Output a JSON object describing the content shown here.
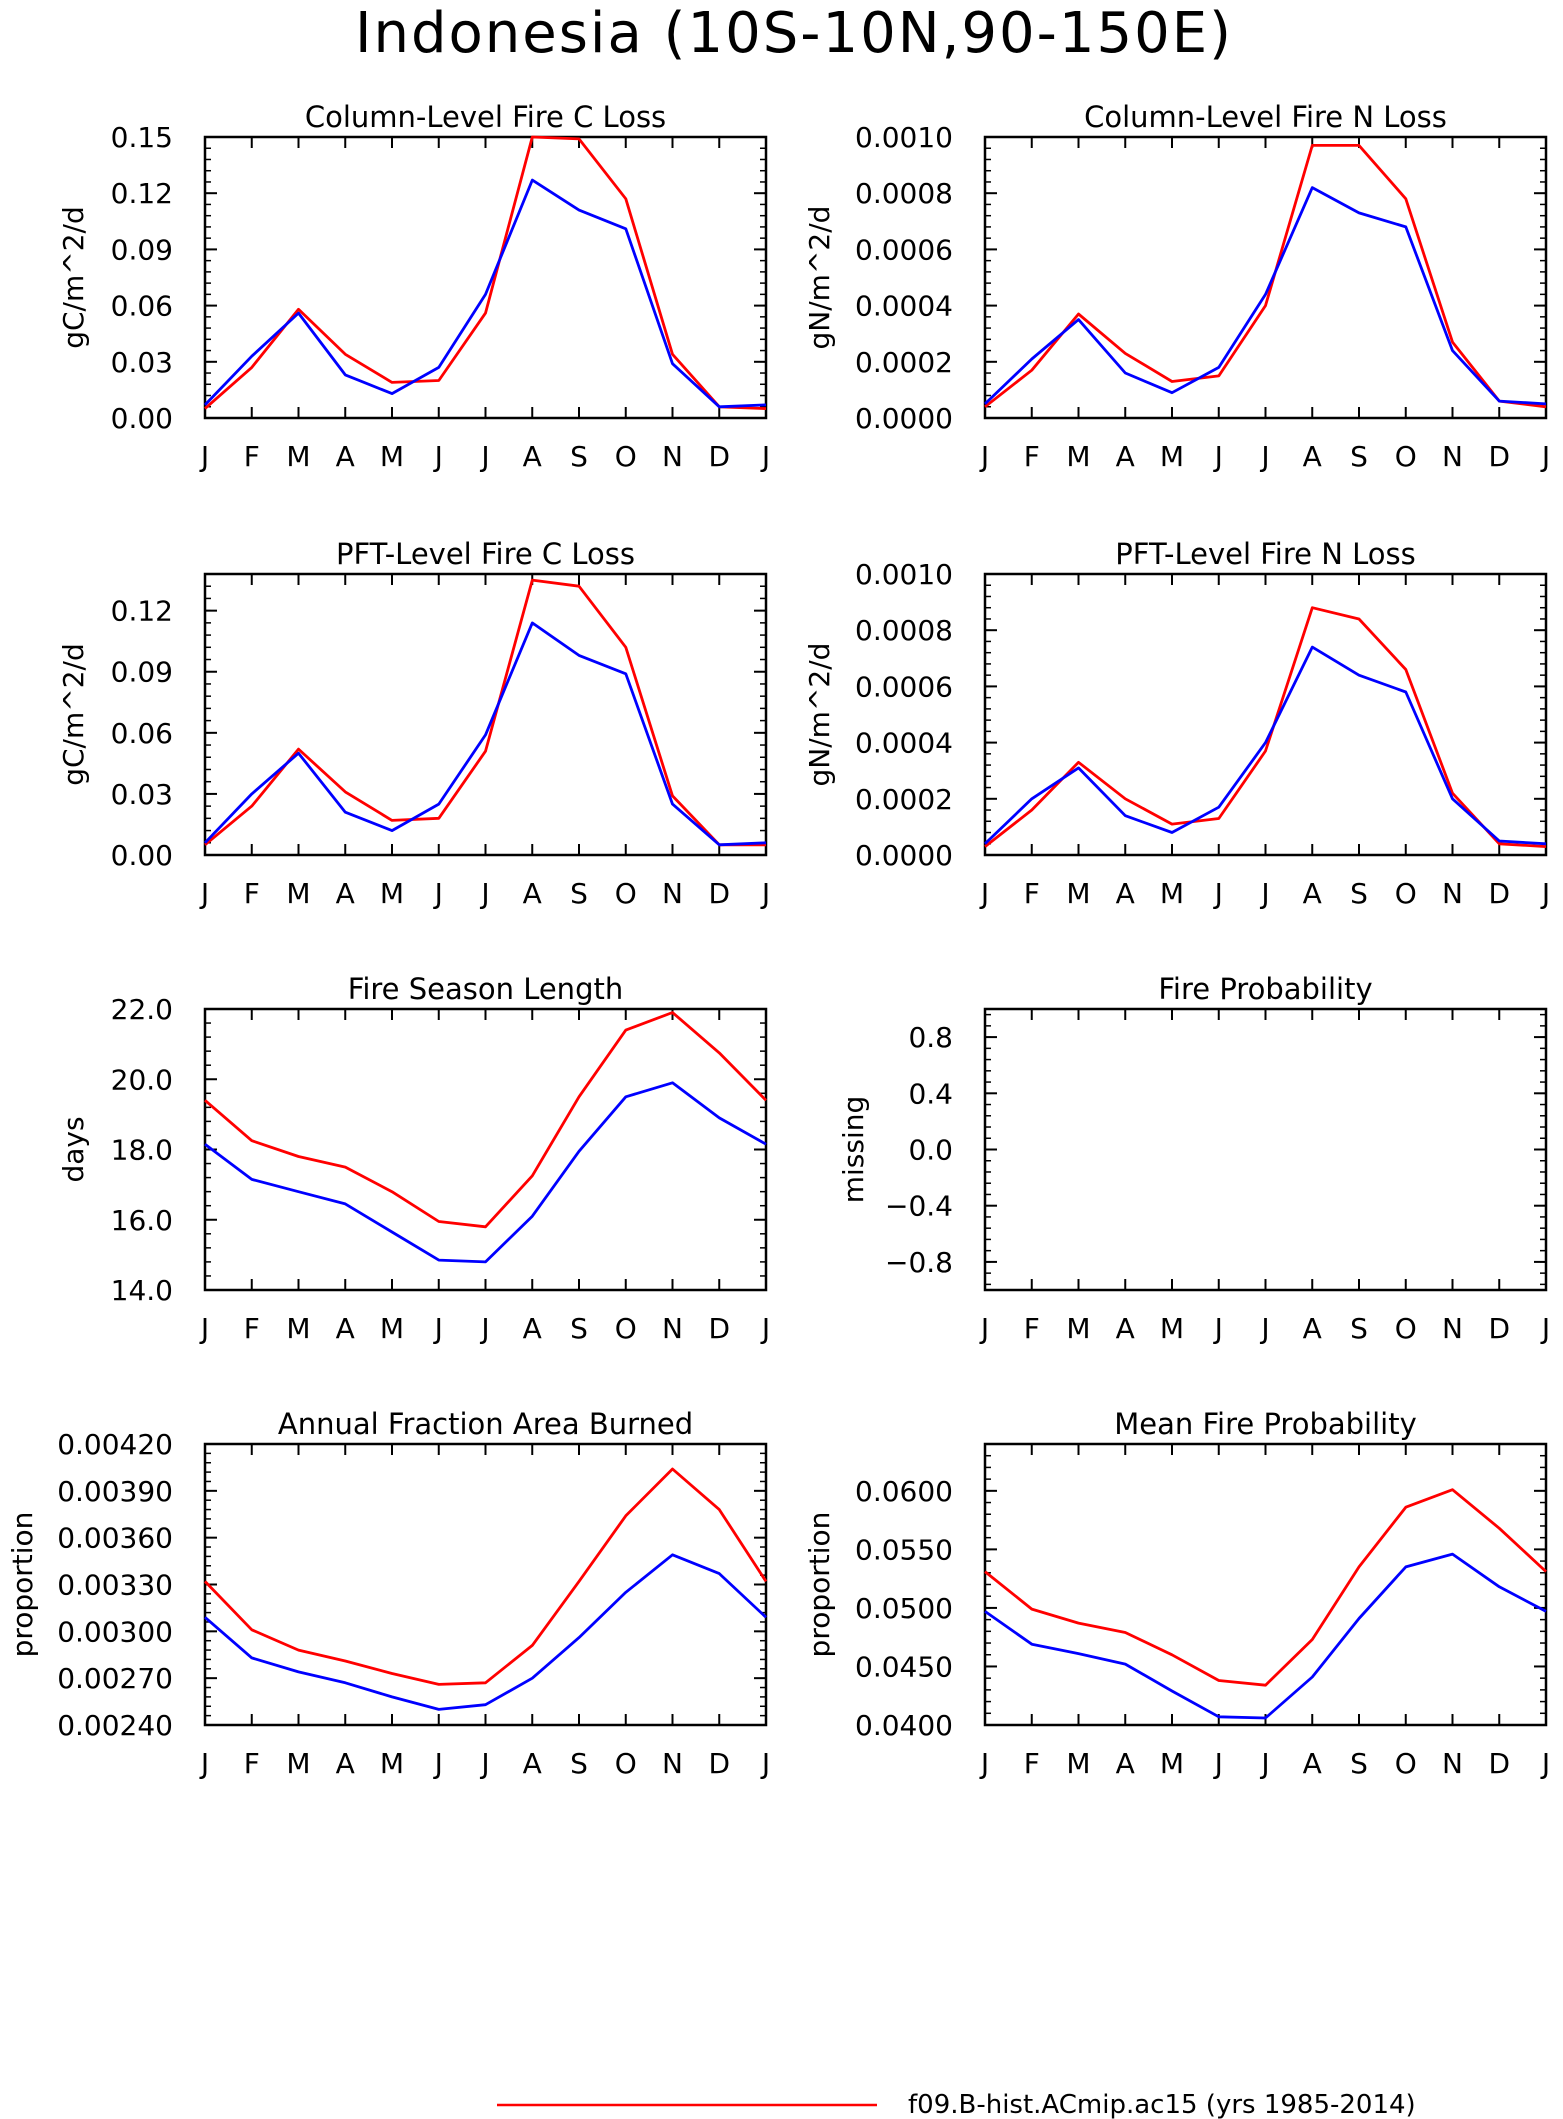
{
  "figure": {
    "title": "Indonesia (10S-10N,90-150E)",
    "legend": [
      {
        "label": "f09.B-hist.ACmip.ac15 (yrs 1985-2014)",
        "color": "#ff0000"
      }
    ],
    "series_colors": {
      "red": "#ff0000",
      "blue": "#0000ff"
    }
  },
  "chart_data": [
    {
      "type": "line",
      "title": "Column-Level Fire C Loss",
      "ylabel": "gC/m^2/d",
      "categories": [
        "J",
        "F",
        "M",
        "A",
        "M",
        "J",
        "J",
        "A",
        "S",
        "O",
        "N",
        "D",
        "J"
      ],
      "ylim": [
        0,
        0.15
      ],
      "yticks": [
        0,
        0.03,
        0.06,
        0.09,
        0.12,
        0.15
      ],
      "ytick_labels": [
        "0.00",
        "0.03",
        "0.06",
        "0.09",
        "0.12",
        "0.15"
      ],
      "series": [
        {
          "color": "#ff0000",
          "values": [
            0.005,
            0.027,
            0.058,
            0.034,
            0.019,
            0.02,
            0.056,
            0.15,
            0.149,
            0.117,
            0.034,
            0.006,
            0.005
          ]
        },
        {
          "color": "#0000ff",
          "values": [
            0.007,
            0.033,
            0.056,
            0.023,
            0.013,
            0.027,
            0.066,
            0.127,
            0.111,
            0.101,
            0.029,
            0.006,
            0.007
          ]
        }
      ]
    },
    {
      "type": "line",
      "title": "Column-Level Fire N Loss",
      "ylabel": "gN/m^2/d",
      "categories": [
        "J",
        "F",
        "M",
        "A",
        "M",
        "J",
        "J",
        "A",
        "S",
        "O",
        "N",
        "D",
        "J"
      ],
      "ylim": [
        0,
        0.001
      ],
      "yticks": [
        0,
        0.0002,
        0.0004,
        0.0006,
        0.0008,
        0.001
      ],
      "ytick_labels": [
        "0.0000",
        "0.0002",
        "0.0004",
        "0.0006",
        "0.0008",
        "0.0010"
      ],
      "series": [
        {
          "color": "#ff0000",
          "values": [
            4e-05,
            0.00017,
            0.00037,
            0.00023,
            0.00013,
            0.00015,
            0.0004,
            0.00097,
            0.00097,
            0.00078,
            0.00027,
            6e-05,
            4e-05
          ]
        },
        {
          "color": "#0000ff",
          "values": [
            5e-05,
            0.00021,
            0.00035,
            0.00016,
            9e-05,
            0.00018,
            0.00044,
            0.00082,
            0.00073,
            0.00068,
            0.00024,
            6e-05,
            5e-05
          ]
        }
      ]
    },
    {
      "type": "line",
      "title": "PFT-Level Fire C Loss",
      "ylabel": "gC/m^2/d",
      "categories": [
        "J",
        "F",
        "M",
        "A",
        "M",
        "J",
        "J",
        "A",
        "S",
        "O",
        "N",
        "D",
        "J"
      ],
      "ylim": [
        0,
        0.138
      ],
      "yticks": [
        0,
        0.03,
        0.06,
        0.09,
        0.12
      ],
      "ytick_labels": [
        "0.00",
        "0.03",
        "0.06",
        "0.09",
        "0.12"
      ],
      "series": [
        {
          "color": "#ff0000",
          "values": [
            0.005,
            0.024,
            0.052,
            0.031,
            0.017,
            0.018,
            0.051,
            0.135,
            0.132,
            0.102,
            0.029,
            0.005,
            0.005
          ]
        },
        {
          "color": "#0000ff",
          "values": [
            0.006,
            0.03,
            0.05,
            0.021,
            0.012,
            0.025,
            0.059,
            0.114,
            0.098,
            0.089,
            0.025,
            0.005,
            0.006
          ]
        }
      ]
    },
    {
      "type": "line",
      "title": "PFT-Level Fire N Loss",
      "ylabel": "gN/m^2/d",
      "categories": [
        "J",
        "F",
        "M",
        "A",
        "M",
        "J",
        "J",
        "A",
        "S",
        "O",
        "N",
        "D",
        "J"
      ],
      "ylim": [
        0,
        0.001
      ],
      "yticks": [
        0,
        0.0002,
        0.0004,
        0.0006,
        0.0008,
        0.001
      ],
      "ytick_labels": [
        "0.0000",
        "0.0002",
        "0.0004",
        "0.0006",
        "0.0008",
        "0.0010"
      ],
      "series": [
        {
          "color": "#ff0000",
          "values": [
            3e-05,
            0.00016,
            0.00033,
            0.0002,
            0.00011,
            0.00013,
            0.00037,
            0.00088,
            0.00084,
            0.00066,
            0.00022,
            4e-05,
            3e-05
          ]
        },
        {
          "color": "#0000ff",
          "values": [
            4e-05,
            0.0002,
            0.00031,
            0.00014,
            8e-05,
            0.00017,
            0.0004,
            0.00074,
            0.00064,
            0.00058,
            0.0002,
            5e-05,
            4e-05
          ]
        }
      ]
    },
    {
      "type": "line",
      "title": "Fire Season Length",
      "ylabel": "days",
      "categories": [
        "J",
        "F",
        "M",
        "A",
        "M",
        "J",
        "J",
        "A",
        "S",
        "O",
        "N",
        "D",
        "J"
      ],
      "ylim": [
        14,
        22
      ],
      "yticks": [
        14,
        16,
        18,
        20,
        22
      ],
      "ytick_labels": [
        "14.0",
        "16.0",
        "18.0",
        "20.0",
        "22.0"
      ],
      "series": [
        {
          "color": "#ff0000",
          "values": [
            19.4,
            18.25,
            17.8,
            17.5,
            16.8,
            15.95,
            15.8,
            17.25,
            19.5,
            21.4,
            21.9,
            20.75,
            19.4
          ]
        },
        {
          "color": "#0000ff",
          "values": [
            18.15,
            17.15,
            16.8,
            16.45,
            15.65,
            14.85,
            14.8,
            16.1,
            17.95,
            19.5,
            19.9,
            18.9,
            18.15
          ]
        }
      ]
    },
    {
      "type": "line",
      "title": "Fire Probability",
      "ylabel": "missing",
      "categories": [
        "J",
        "F",
        "M",
        "A",
        "M",
        "J",
        "J",
        "A",
        "S",
        "O",
        "N",
        "D",
        "J"
      ],
      "ylim": [
        -1,
        1
      ],
      "yticks": [
        -0.8,
        -0.4,
        0,
        0.4,
        0.8
      ],
      "ytick_labels": [
        "−0.8",
        "−0.4",
        "0.0",
        "0.4",
        "0.8"
      ],
      "series": []
    },
    {
      "type": "line",
      "title": "Annual Fraction Area Burned",
      "ylabel": "proportion",
      "categories": [
        "J",
        "F",
        "M",
        "A",
        "M",
        "J",
        "J",
        "A",
        "S",
        "O",
        "N",
        "D",
        "J"
      ],
      "ylim": [
        0.0024,
        0.0042
      ],
      "yticks": [
        0.0024,
        0.0027,
        0.003,
        0.0033,
        0.0036,
        0.0039,
        0.0042
      ],
      "ytick_labels": [
        "0.00240",
        "0.00270",
        "0.00300",
        "0.00330",
        "0.00360",
        "0.00390",
        "0.00420"
      ],
      "series": [
        {
          "color": "#ff0000",
          "values": [
            0.00332,
            0.00301,
            0.00288,
            0.00281,
            0.00273,
            0.00266,
            0.00267,
            0.00291,
            0.00332,
            0.00374,
            0.00404,
            0.00378,
            0.00332
          ]
        },
        {
          "color": "#0000ff",
          "values": [
            0.00309,
            0.00283,
            0.00274,
            0.00267,
            0.00258,
            0.0025,
            0.00253,
            0.0027,
            0.00296,
            0.00325,
            0.00349,
            0.00337,
            0.00309
          ]
        }
      ]
    },
    {
      "type": "line",
      "title": "Mean Fire Probability",
      "ylabel": "proportion",
      "categories": [
        "J",
        "F",
        "M",
        "A",
        "M",
        "J",
        "J",
        "A",
        "S",
        "O",
        "N",
        "D",
        "J"
      ],
      "ylim": [
        0.04,
        0.064
      ],
      "yticks": [
        0.04,
        0.045,
        0.05,
        0.055,
        0.06
      ],
      "ytick_labels": [
        "0.0400",
        "0.0450",
        "0.0500",
        "0.0550",
        "0.0600"
      ],
      "series": [
        {
          "color": "#ff0000",
          "values": [
            0.0531,
            0.0499,
            0.0487,
            0.0479,
            0.046,
            0.0438,
            0.0434,
            0.0473,
            0.0535,
            0.0586,
            0.0601,
            0.0568,
            0.0531
          ]
        },
        {
          "color": "#0000ff",
          "values": [
            0.0497,
            0.0469,
            0.0461,
            0.0452,
            0.0429,
            0.0407,
            0.0406,
            0.0441,
            0.0491,
            0.0535,
            0.0546,
            0.0518,
            0.0497
          ]
        }
      ]
    }
  ]
}
